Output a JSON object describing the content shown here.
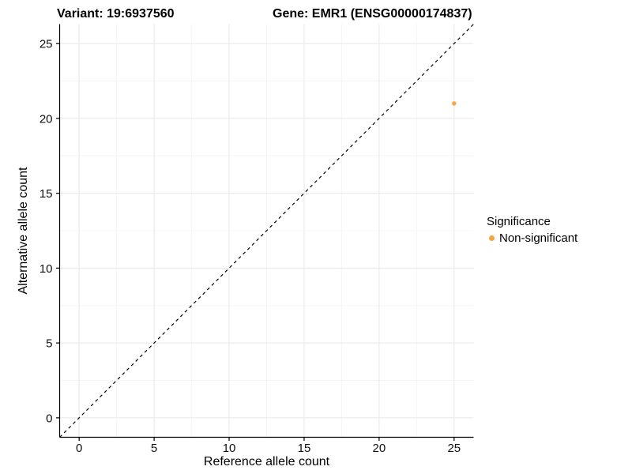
{
  "header": {
    "variant_title": "Variant: 19:6937560",
    "gene_title": "Gene: EMR1 (ENSG00000174837)"
  },
  "legend": {
    "title": "Significance",
    "items": [
      {
        "label": "Non-significant",
        "color": "#FBA33C"
      }
    ],
    "position": "right"
  },
  "chart_data": {
    "type": "scatter",
    "xlabel": "Reference allele count",
    "ylabel": "Alternative allele count",
    "xlim": [
      -1.3,
      26.3
    ],
    "ylim": [
      -1.3,
      26.3
    ],
    "x_ticks": [
      0,
      5,
      10,
      15,
      20,
      25
    ],
    "y_ticks": [
      0,
      5,
      10,
      15,
      20,
      25
    ],
    "x_minor_ticks": [
      2.5,
      7.5,
      12.5,
      17.5,
      22.5
    ],
    "y_minor_ticks": [
      2.5,
      7.5,
      12.5,
      17.5,
      22.5
    ],
    "grid": true,
    "series": [
      {
        "name": "Non-significant",
        "color": "#FBA33C",
        "points": [
          {
            "x": 25,
            "y": 21
          }
        ]
      }
    ],
    "reference_line": {
      "kind": "identity",
      "style": "dashed",
      "color": "#000000"
    }
  },
  "colors": {
    "grid_major": "#ECECEC",
    "grid_minor": "#F5F5F5",
    "axis_line": "#000000",
    "tick_text": "#111111",
    "title_text": "#000000"
  }
}
